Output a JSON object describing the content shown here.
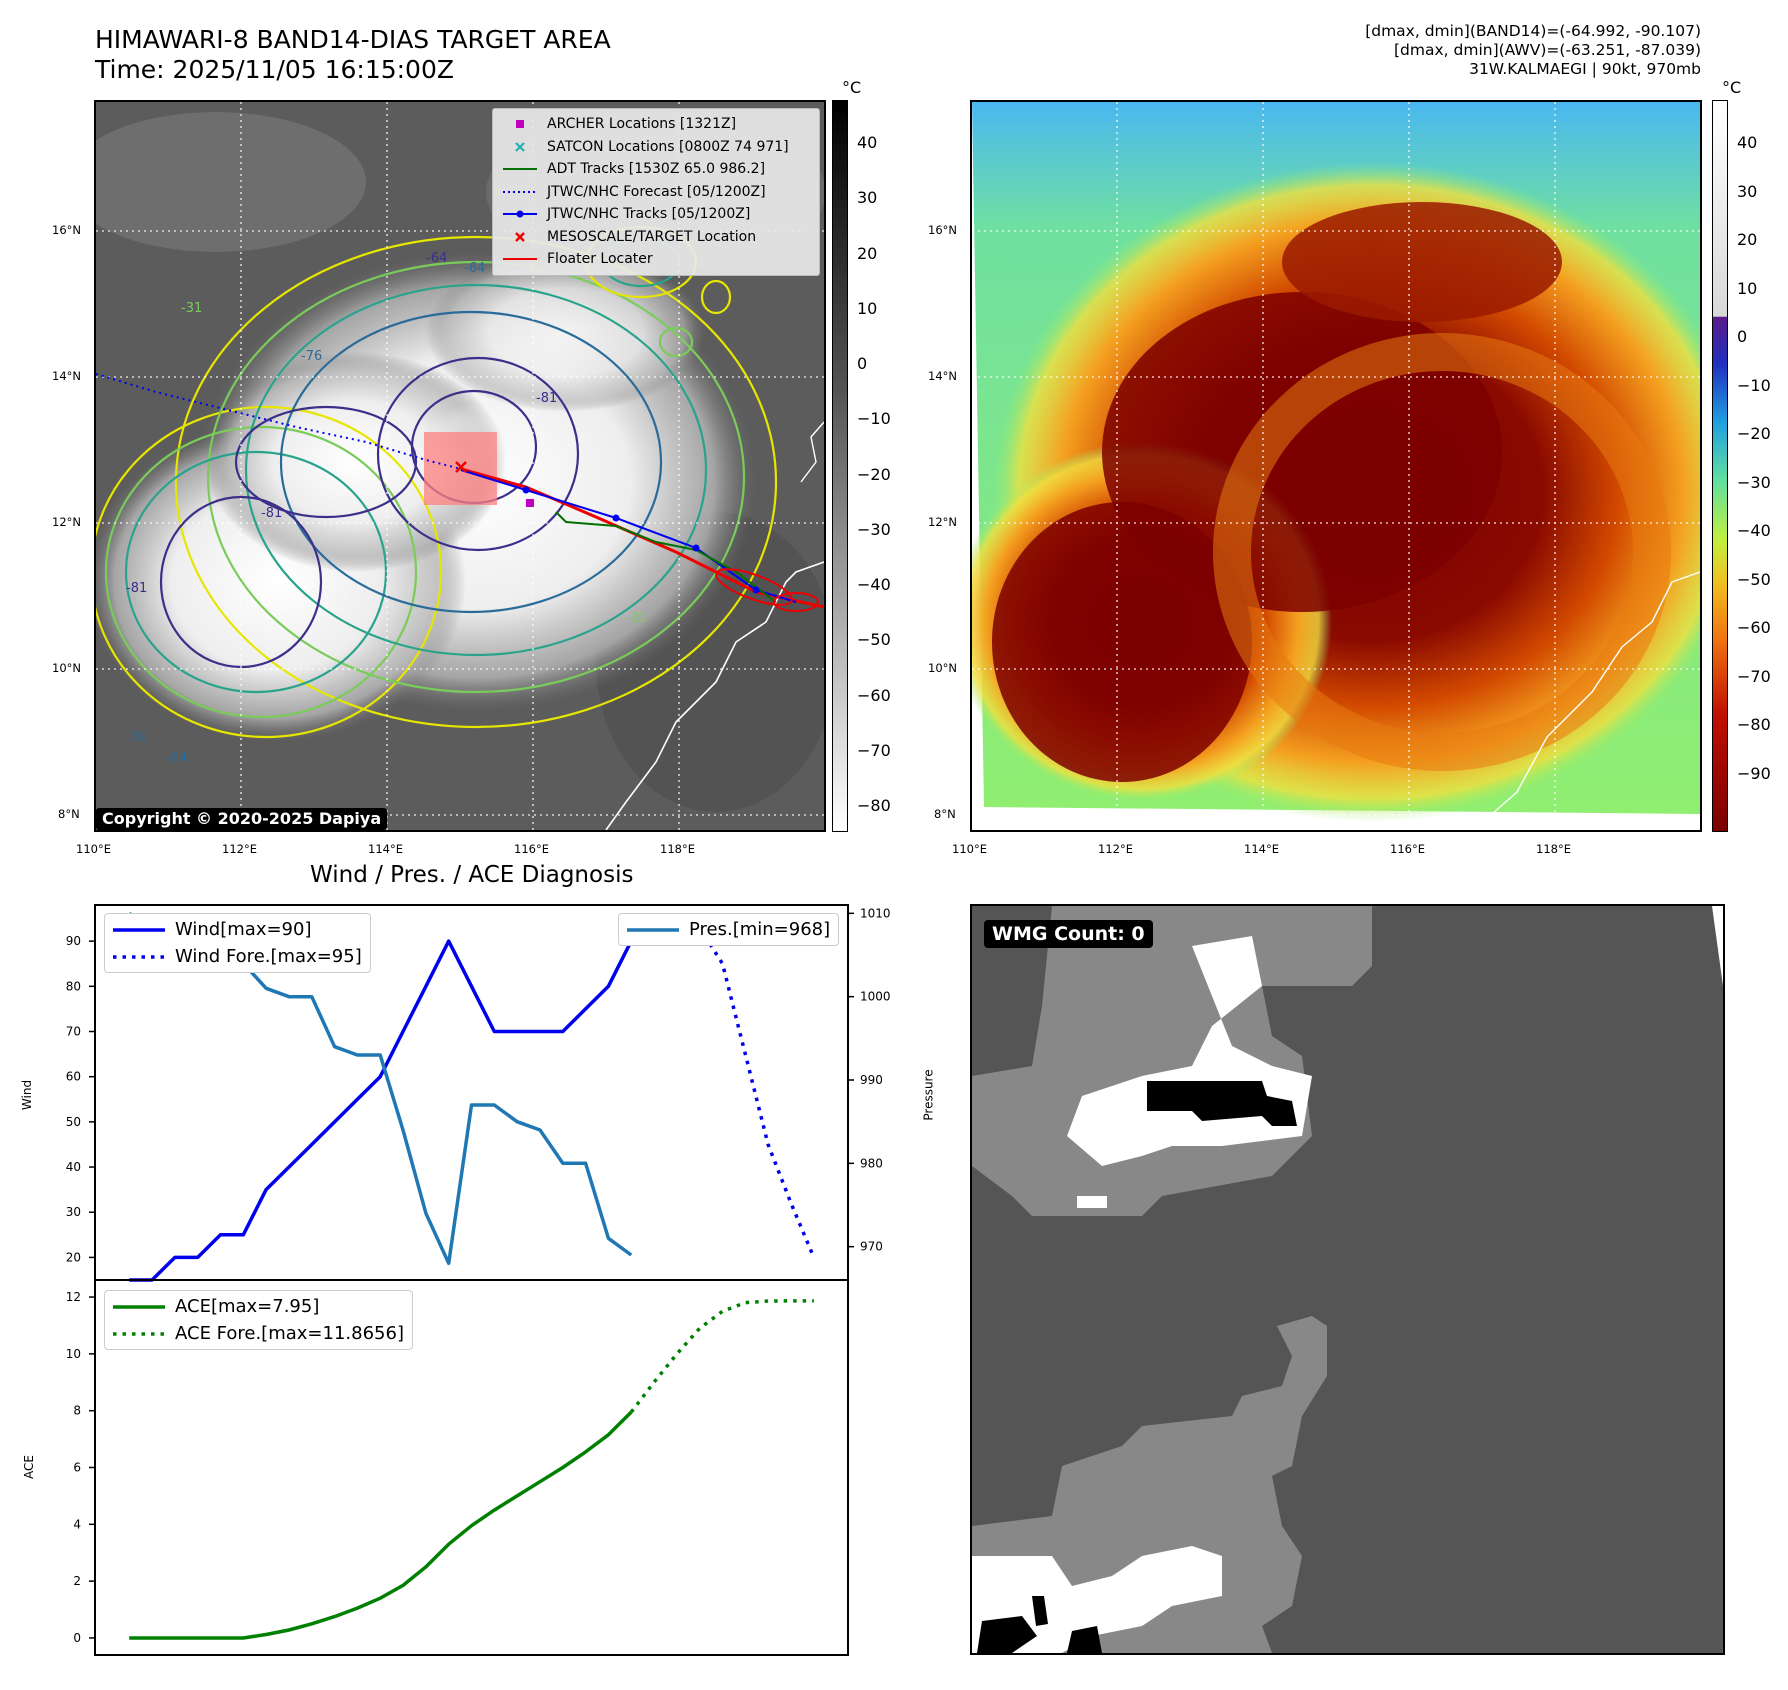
{
  "header": {
    "title_line1": "HIMAWARI-8 BAND14-DIAS TARGET AREA",
    "title_line2": "Time: 2025/11/05 16:15:00Z",
    "info_line1": "[dmax, dmin](BAND14)=(-64.992, -90.107)",
    "info_line2": "[dmax, dmin](AWV)=(-63.251, -87.039)",
    "info_line3": "31W.KALMAEGI | 90kt, 970mb"
  },
  "map_panel": {
    "legend": [
      {
        "label": "ARCHER Locations [1321Z]",
        "symbol": "square",
        "color": "#c000c0"
      },
      {
        "label": "SATCON Locations [0800Z 74 971]",
        "symbol": "x",
        "color": "#20b0b0"
      },
      {
        "label": "ADT Tracks [1530Z 65.0 986.2]",
        "symbol": "line",
        "color": "#007000"
      },
      {
        "label": "JTWC/NHC Forecast [05/1200Z]",
        "symbol": "dotted",
        "color": "#0000ee"
      },
      {
        "label": "JTWC/NHC Tracks [05/1200Z]",
        "symbol": "line-dot",
        "color": "#0000ee"
      },
      {
        "label": "MESOSCALE/TARGET Location",
        "symbol": "x",
        "color": "#ee0000"
      },
      {
        "label": "Floater Locater",
        "symbol": "line",
        "color": "#ee0000"
      }
    ],
    "copyright": "Copyright © 2020-2025 Dapiya",
    "colorbar_unit": "°C",
    "colorbar_ticks": [
      "40",
      "30",
      "20",
      "10",
      "0",
      "−10",
      "−20",
      "−30",
      "−40",
      "−50",
      "−60",
      "−70",
      "−80"
    ],
    "lat_ticks": [
      "16°N",
      "14°N",
      "12°N",
      "10°N",
      "8°N"
    ],
    "lon_ticks": [
      "110°E",
      "112°E",
      "114°E",
      "116°E",
      "118°E"
    ],
    "contour_labels": [
      "-64",
      "-81",
      "-31",
      "-76",
      "-64",
      "-81",
      "-81",
      "-31",
      "-76",
      "-64"
    ]
  },
  "ir_panel": {
    "colorbar_unit": "°C",
    "colorbar_ticks": [
      "40",
      "30",
      "20",
      "10",
      "0",
      "−10",
      "−20",
      "−30",
      "−40",
      "−50",
      "−60",
      "−70",
      "−80",
      "−90"
    ],
    "lat_ticks": [
      "16°N",
      "14°N",
      "12°N",
      "10°N",
      "8°N"
    ],
    "lon_ticks": [
      "110°E",
      "112°E",
      "114°E",
      "116°E",
      "118°E"
    ]
  },
  "wmg_panel": {
    "count_label": "WMG Count: 0"
  },
  "chart_data": [
    {
      "type": "line",
      "title": "Wind / Pres. / ACE Diagnosis",
      "ylabel": "Wind",
      "ylabel_right": "Pressure",
      "ylim": [
        15,
        98
      ],
      "ylim_right": [
        966,
        1011
      ],
      "yticks": [
        20,
        30,
        40,
        50,
        60,
        70,
        80,
        90
      ],
      "yticks_right": [
        970,
        980,
        990,
        1000,
        1010
      ],
      "series": [
        {
          "name": "Wind[max=90]",
          "axis": "left",
          "style": "solid",
          "color": "#0000ee",
          "x": [
            0,
            1,
            2,
            3,
            4,
            5,
            6,
            7,
            8,
            9,
            10,
            11,
            12,
            13,
            14,
            15,
            16,
            17,
            18,
            19,
            20,
            21,
            22
          ],
          "values": [
            15,
            15,
            20,
            20,
            25,
            25,
            35,
            40,
            45,
            50,
            55,
            60,
            70,
            80,
            90,
            80,
            70,
            70,
            70,
            70,
            75,
            80,
            90
          ]
        },
        {
          "name": "Wind Fore.[max=95]",
          "axis": "left",
          "style": "dotted",
          "color": "#0000ee",
          "x": [
            22,
            23,
            24,
            25,
            26,
            27,
            28,
            29,
            30
          ],
          "values": [
            90,
            93,
            95,
            93,
            85,
            65,
            45,
            32,
            20
          ]
        },
        {
          "name": "Pres.[min=968]",
          "axis": "right",
          "style": "solid",
          "color": "#1f77b4",
          "x": [
            0,
            1,
            2,
            3,
            4,
            5,
            6,
            7,
            8,
            9,
            10,
            11,
            12,
            13,
            14,
            15,
            16,
            17,
            18,
            19,
            20,
            21,
            22
          ],
          "values": [
            1010,
            1008,
            1008,
            1008,
            1007,
            1004,
            1001,
            1000,
            1000,
            994,
            993,
            993,
            984,
            974,
            968,
            987,
            987,
            985,
            984,
            980,
            980,
            971,
            969
          ]
        }
      ]
    },
    {
      "type": "line",
      "ylabel": "ACE",
      "ylim": [
        -0.6,
        12.6
      ],
      "yticks": [
        0,
        2,
        4,
        6,
        8,
        10,
        12
      ],
      "series": [
        {
          "name": "ACE[max=7.95]",
          "style": "solid",
          "color": "#008000",
          "x": [
            0,
            1,
            2,
            3,
            4,
            5,
            6,
            7,
            8,
            9,
            10,
            11,
            12,
            13,
            14,
            15,
            16,
            17,
            18,
            19,
            20,
            21,
            22
          ],
          "values": [
            0,
            0,
            0,
            0,
            0,
            0,
            0.12,
            0.28,
            0.5,
            0.75,
            1.05,
            1.4,
            1.85,
            2.5,
            3.3,
            3.95,
            4.5,
            5.0,
            5.5,
            6.0,
            6.55,
            7.15,
            7.95
          ]
        },
        {
          "name": "ACE Fore.[max=11.8656]",
          "style": "dotted",
          "color": "#008000",
          "x": [
            22,
            23,
            24,
            25,
            26,
            27,
            28,
            29,
            30
          ],
          "values": [
            7.95,
            9.0,
            10.0,
            10.9,
            11.5,
            11.8,
            11.86,
            11.8656,
            11.8656
          ]
        }
      ]
    }
  ]
}
